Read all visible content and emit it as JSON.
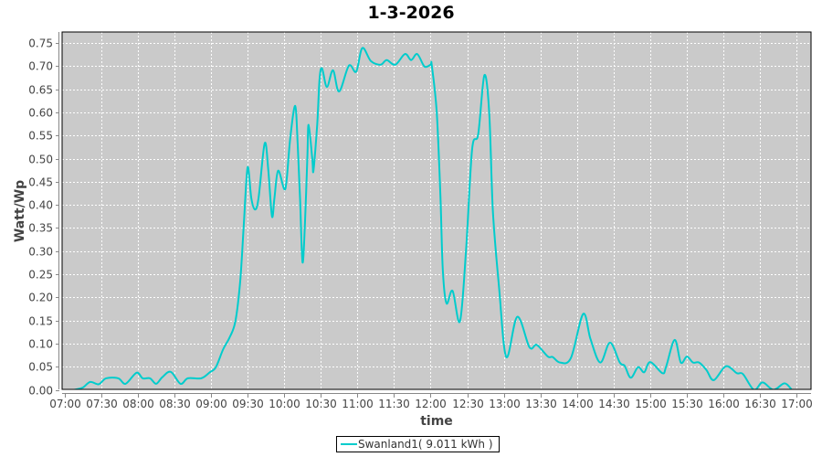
{
  "chart_data": {
    "type": "line",
    "title": "1-3-2026",
    "xlabel": "time",
    "ylabel": "Watt/Wp",
    "xlim": [
      "07:00",
      "17:00"
    ],
    "ylim": [
      0,
      0.774
    ],
    "x_ticks": [
      "07:00",
      "07:30",
      "08:00",
      "08:30",
      "09:00",
      "09:30",
      "10:00",
      "10:30",
      "11:00",
      "11:30",
      "12:00",
      "12:30",
      "13:00",
      "13:30",
      "14:00",
      "14:30",
      "15:00",
      "15:30",
      "16:00",
      "16:30",
      "17:00"
    ],
    "y_ticks": [
      "0.00",
      "0.05",
      "0.10",
      "0.15",
      "0.20",
      "0.25",
      "0.30",
      "0.35",
      "0.40",
      "0.45",
      "0.50",
      "0.55",
      "0.60",
      "0.65",
      "0.70",
      "0.75"
    ],
    "grid": true,
    "legend_position": "bottom",
    "colors": {
      "plot_background": "#cacaca",
      "grid": "#ffffff",
      "series": "#00cccc"
    },
    "series": [
      {
        "name": "Swanland1( 9.011 kWh )",
        "x": [
          "07:08",
          "07:15",
          "07:21",
          "07:28",
          "07:34",
          "07:44",
          "07:50",
          "07:59",
          "08:04",
          "08:10",
          "08:15",
          "08:20",
          "08:27",
          "08:35",
          "08:41",
          "08:52",
          "08:59",
          "09:04",
          "09:10",
          "09:15",
          "09:20",
          "09:24",
          "09:27",
          "09:30",
          "09:33",
          "09:36",
          "09:39",
          "09:44",
          "09:47",
          "09:50",
          "09:52",
          "09:55",
          "10:00",
          "10:02",
          "10:05",
          "10:09",
          "10:11",
          "10:13",
          "10:15",
          "10:17",
          "10:19",
          "10:20",
          "10:23",
          "10:24",
          "10:27",
          "10:29",
          "10:31",
          "10:35",
          "10:40",
          "10:45",
          "10:53",
          "10:59",
          "11:04",
          "11:11",
          "11:19",
          "11:24",
          "11:31",
          "11:39",
          "11:44",
          "11:49",
          "11:55",
          "12:00",
          "12:01",
          "12:05",
          "12:08",
          "12:10",
          "12:13",
          "12:18",
          "12:24",
          "12:29",
          "12:34",
          "12:39",
          "12:44",
          "12:48",
          "12:51",
          "12:56",
          "13:02",
          "13:11",
          "13:21",
          "13:27",
          "13:36",
          "13:40",
          "13:46",
          "13:55",
          "14:05",
          "14:11",
          "14:19",
          "14:27",
          "14:35",
          "14:39",
          "14:44",
          "14:50",
          "14:55",
          "15:00",
          "15:10",
          "15:13",
          "15:20",
          "15:25",
          "15:30",
          "15:35",
          "15:40",
          "15:46",
          "15:52",
          "16:02",
          "16:11",
          "16:16",
          "16:25",
          "16:32",
          "16:41",
          "16:50",
          "16:56"
        ],
        "y": [
          0.0,
          0.005,
          0.017,
          0.012,
          0.025,
          0.025,
          0.013,
          0.037,
          0.025,
          0.025,
          0.013,
          0.027,
          0.039,
          0.013,
          0.025,
          0.025,
          0.038,
          0.049,
          0.088,
          0.112,
          0.148,
          0.237,
          0.363,
          0.481,
          0.415,
          0.39,
          0.415,
          0.533,
          0.474,
          0.375,
          0.415,
          0.474,
          0.434,
          0.455,
          0.546,
          0.614,
          0.533,
          0.415,
          0.276,
          0.36,
          0.507,
          0.573,
          0.5,
          0.474,
          0.573,
          0.672,
          0.695,
          0.655,
          0.691,
          0.645,
          0.701,
          0.688,
          0.739,
          0.711,
          0.703,
          0.713,
          0.703,
          0.726,
          0.713,
          0.726,
          0.699,
          0.703,
          0.701,
          0.6,
          0.42,
          0.257,
          0.187,
          0.214,
          0.148,
          0.3,
          0.52,
          0.553,
          0.68,
          0.6,
          0.388,
          0.224,
          0.071,
          0.158,
          0.092,
          0.097,
          0.072,
          0.071,
          0.059,
          0.069,
          0.164,
          0.11,
          0.059,
          0.102,
          0.059,
          0.052,
          0.026,
          0.049,
          0.038,
          0.06,
          0.036,
          0.05,
          0.108,
          0.059,
          0.072,
          0.059,
          0.059,
          0.043,
          0.021,
          0.051,
          0.036,
          0.034,
          0.0,
          0.016,
          0.0,
          0.014,
          0.0
        ]
      }
    ]
  }
}
